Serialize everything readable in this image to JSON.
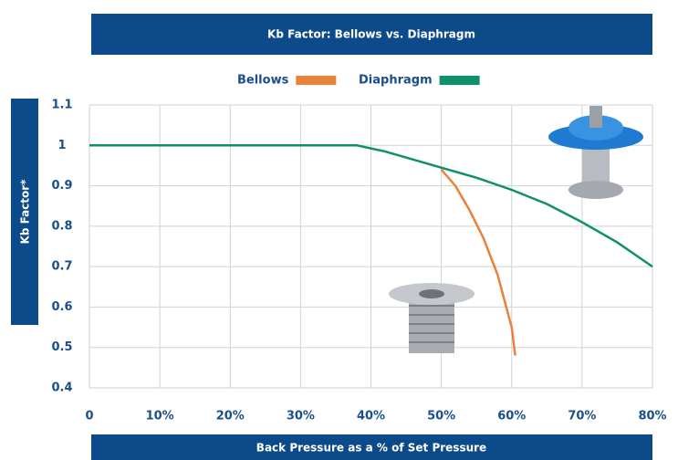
{
  "chart_data": {
    "type": "line",
    "title": "Kb Factor: Bellows vs. Diaphragm",
    "x_label": "Back Pressure as a % of Set Pressure",
    "y_label": "Kb Factor*",
    "series": [
      {
        "name": "Bellows",
        "color": "#e8823a",
        "x": [
          50,
          52,
          54,
          56,
          58,
          60,
          60.5
        ],
        "values": [
          0.94,
          0.9,
          0.84,
          0.77,
          0.68,
          0.55,
          0.48
        ]
      },
      {
        "name": "Diaphragm",
        "color": "#0e9068",
        "x": [
          0,
          10,
          20,
          30,
          38,
          42,
          46,
          50,
          55,
          60,
          65,
          70,
          75,
          80
        ],
        "values": [
          1,
          1,
          1,
          1,
          1,
          0.985,
          0.965,
          0.945,
          0.92,
          0.89,
          0.855,
          0.81,
          0.76,
          0.7
        ]
      }
    ],
    "xlim": [
      0,
      80
    ],
    "xticks": [
      0,
      {
        "value": 10,
        "label": "10%"
      },
      {
        "value": 20,
        "label": "20%"
      },
      {
        "value": 30,
        "label": "30%"
      },
      {
        "value": 40,
        "label": "40%"
      },
      {
        "value": 50,
        "label": "50%"
      },
      {
        "value": 60,
        "label": "60%"
      },
      {
        "value": 70,
        "label": "70%"
      },
      {
        "value": 80,
        "label": "80%"
      }
    ],
    "ylim": [
      0.4,
      1.1
    ],
    "yticks": [
      0.4,
      0.5,
      0.6,
      0.7,
      0.8,
      0.9,
      1,
      1.1
    ],
    "grid": true
  }
}
